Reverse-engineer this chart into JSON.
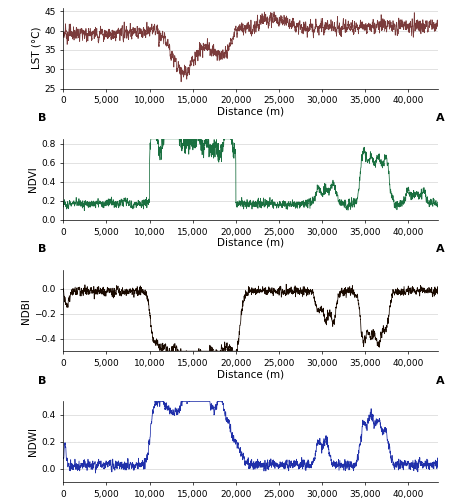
{
  "fig_width": 4.52,
  "fig_height": 5.0,
  "dpi": 100,
  "x_max": 43500,
  "x_ticks": [
    0,
    5000,
    10000,
    15000,
    20000,
    25000,
    30000,
    35000,
    40000
  ],
  "xlabel": "Distance (m)",
  "plots": [
    {
      "ylabel": "LST (°C)",
      "ylim": [
        25,
        46
      ],
      "yticks": [
        25,
        30,
        35,
        40,
        45
      ],
      "color": "#7B3B3B",
      "linewidth": 0.55
    },
    {
      "ylabel": "NDVI",
      "ylim": [
        0.0,
        0.85
      ],
      "yticks": [
        0.0,
        0.2,
        0.4,
        0.6,
        0.8
      ],
      "color": "#1A7040",
      "linewidth": 0.55
    },
    {
      "ylabel": "NDBI",
      "ylim": [
        -0.5,
        0.15
      ],
      "yticks": [
        -0.4,
        -0.2,
        0.0
      ],
      "color": "#1A0A00",
      "linewidth": 0.55
    },
    {
      "ylabel": "NDWI",
      "ylim": [
        -0.1,
        0.5
      ],
      "yticks": [
        0.0,
        0.2,
        0.4
      ],
      "color": "#2030AA",
      "linewidth": 0.55
    }
  ],
  "tick_fontsize": 6.5,
  "label_fontsize": 7.5,
  "axis_label_fontsize": 7.5,
  "BA_fontsize": 8.0
}
